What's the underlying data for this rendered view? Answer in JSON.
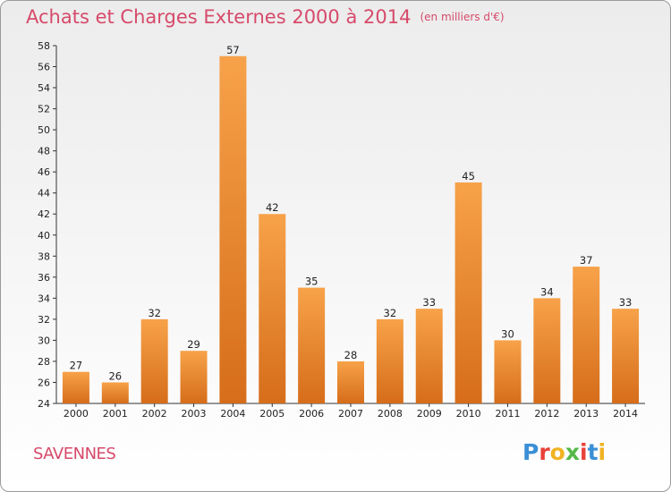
{
  "header": {
    "title": "Achats et Charges Externes 2000 à 2014",
    "unit": "(en milliers d'€)"
  },
  "footer": {
    "city": "SAVENNES",
    "logo": [
      "P",
      "r",
      "o",
      "x",
      "i",
      "t",
      "i"
    ]
  },
  "colors": {
    "title": "#d64a6a",
    "bar_light": "#f7a24a",
    "bar_dark": "#d66d1a",
    "logo": [
      "#3b8fd6",
      "#e8413a",
      "#f0b323",
      "#55b848",
      "#e8413a",
      "#3b8fd6",
      "#f0b323"
    ]
  },
  "chart_data": {
    "type": "bar",
    "title": "Achats et Charges Externes 2000 à 2014",
    "subtitle": "(en milliers d'€)",
    "categories": [
      "2000",
      "2001",
      "2002",
      "2003",
      "2004",
      "2005",
      "2006",
      "2007",
      "2008",
      "2009",
      "2010",
      "2011",
      "2012",
      "2013",
      "2014"
    ],
    "values": [
      27,
      26,
      32,
      29,
      57,
      42,
      35,
      28,
      32,
      33,
      45,
      30,
      34,
      37,
      33
    ],
    "ylim": [
      24,
      58
    ],
    "yticks": [
      24,
      26,
      28,
      30,
      32,
      34,
      36,
      38,
      40,
      42,
      44,
      46,
      48,
      50,
      52,
      54,
      56,
      58
    ],
    "grid": false,
    "data_labels": true
  }
}
